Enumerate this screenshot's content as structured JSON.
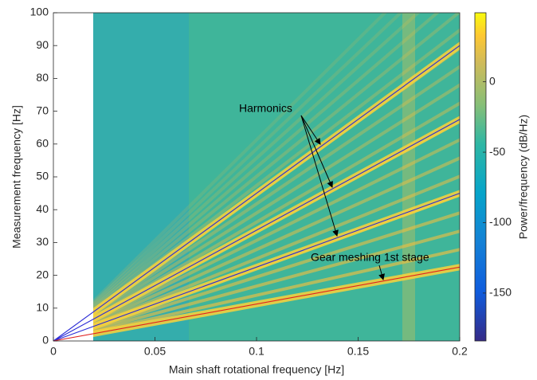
{
  "chart_data": {
    "type": "line",
    "xlabel": "Main shaft rotational frequency [Hz]",
    "ylabel": "Measurement frequency [Hz]",
    "xlim": [
      0,
      0.2
    ],
    "ylim": [
      0,
      100
    ],
    "xticks": [
      0,
      0.05,
      0.1,
      0.15,
      0.2
    ],
    "yticks": [
      0,
      10,
      20,
      30,
      40,
      50,
      60,
      70,
      80,
      90,
      100
    ],
    "series": [
      {
        "color": "#2b2bd6",
        "x": [
          0,
          0.2
        ],
        "values": [
          0,
          90
        ]
      },
      {
        "color": "#2b2bd6",
        "x": [
          0,
          0.2
        ],
        "values": [
          0,
          67.5
        ]
      },
      {
        "color": "#2b2bd6",
        "x": [
          0,
          0.2
        ],
        "values": [
          0,
          45
        ]
      },
      {
        "color": "#e02020",
        "x": [
          0,
          0.2
        ],
        "values": [
          0,
          22.5
        ]
      }
    ],
    "annotations": [
      {
        "text": "Harmonics"
      },
      {
        "text": "Gear meshing 1st stage"
      }
    ],
    "colorbar": {
      "label": "Power/frequency (dB/Hz)",
      "clim": [
        -184,
        49
      ],
      "ticks": [
        0,
        -50,
        -100,
        -150
      ]
    }
  }
}
